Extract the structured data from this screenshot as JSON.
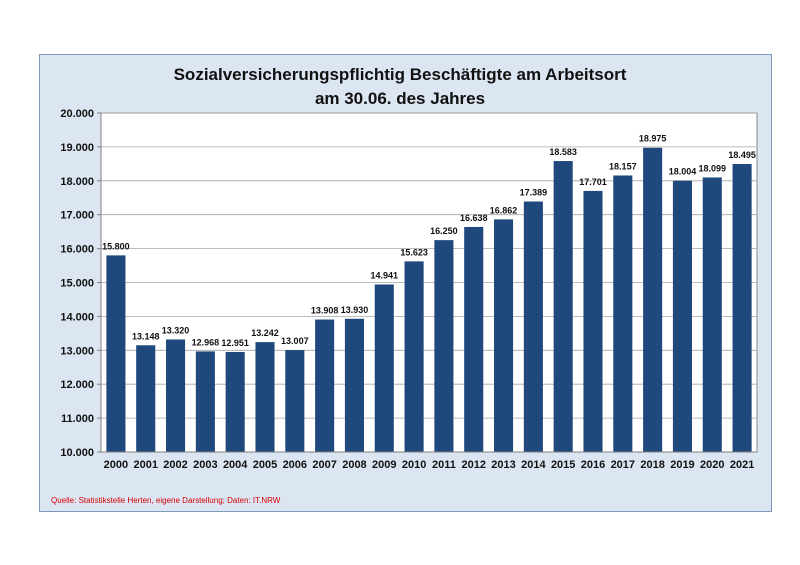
{
  "chart_data": {
    "type": "bar",
    "title": "Sozialversicherungspflichtig Beschäftigte am Arbeitsort",
    "subtitle": "am 30.06. des Jahres",
    "categories": [
      "2000",
      "2001",
      "2002",
      "2003",
      "2004",
      "2005",
      "2006",
      "2007",
      "2008",
      "2009",
      "2010",
      "2011",
      "2012",
      "2013",
      "2014",
      "2015",
      "2016",
      "2017",
      "2018",
      "2019",
      "2020",
      "2021"
    ],
    "values": [
      15800,
      13148,
      13320,
      12968,
      12951,
      13242,
      13007,
      13908,
      13930,
      14941,
      15623,
      16250,
      16638,
      16862,
      17389,
      18583,
      17701,
      18157,
      18975,
      18004,
      18099,
      18495
    ],
    "ylim": [
      10000,
      20000
    ],
    "yticks": [
      10000,
      11000,
      12000,
      13000,
      14000,
      15000,
      16000,
      17000,
      18000,
      19000,
      20000
    ],
    "grid": true,
    "bar_color": "#1f497d",
    "source": "Quelle: Statistikstelle Herten, eigene Darstellung; Daten: IT.NRW"
  }
}
